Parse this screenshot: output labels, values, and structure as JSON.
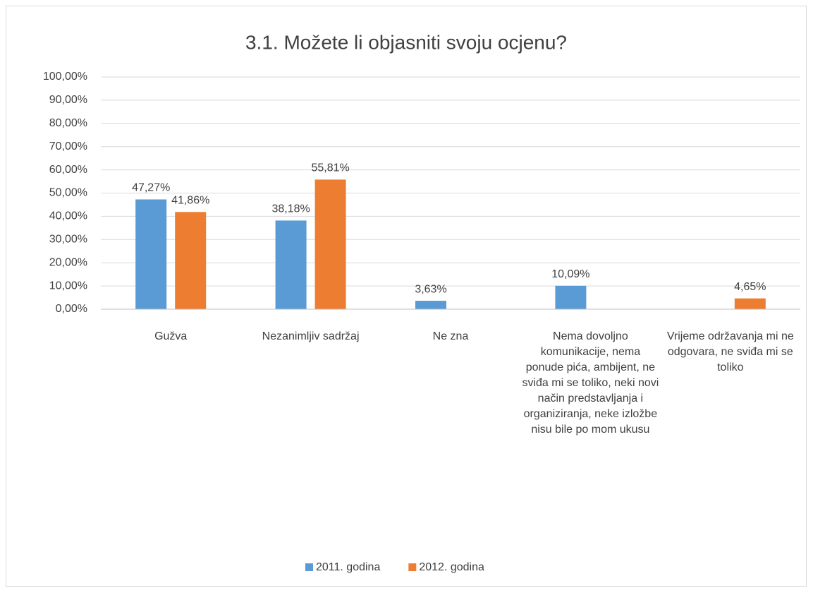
{
  "chart_data": {
    "type": "bar",
    "title": "3.1. Možete li objasniti svoju ocjenu?",
    "categories": [
      "Gužva",
      "Nezanimljiv sadržaj",
      "Ne zna",
      "Nema dovoljno komunikacije, nema ponude pića, ambijent, ne sviđa mi se toliko, neki novi način predstavljanja i organiziranja, neke izložbe nisu bile po mom ukusu",
      "Vrijeme održavanja mi ne odgovara, ne sviđa mi se toliko"
    ],
    "series": [
      {
        "name": "2011. godina",
        "color": "#5b9bd5",
        "values": [
          47.27,
          38.18,
          3.63,
          10.09,
          null
        ],
        "value_labels": [
          "47,27%",
          "38,18%",
          "3,63%",
          "10,09%",
          null
        ]
      },
      {
        "name": "2012. godina",
        "color": "#ed7d31",
        "values": [
          41.86,
          55.81,
          null,
          null,
          4.65
        ],
        "value_labels": [
          "41,86%",
          "55,81%",
          null,
          null,
          "4,65%"
        ]
      }
    ],
    "ylim": [
      0,
      100
    ],
    "yticks": [
      {
        "value": 0,
        "label": "0,00%"
      },
      {
        "value": 10,
        "label": "10,00%"
      },
      {
        "value": 20,
        "label": "20,00%"
      },
      {
        "value": 30,
        "label": "30,00%"
      },
      {
        "value": 40,
        "label": "40,00%"
      },
      {
        "value": 50,
        "label": "50,00%"
      },
      {
        "value": 60,
        "label": "60,00%"
      },
      {
        "value": 70,
        "label": "70,00%"
      },
      {
        "value": 80,
        "label": "80,00%"
      },
      {
        "value": 90,
        "label": "90,00%"
      },
      {
        "value": 100,
        "label": "100,00%"
      }
    ],
    "grid": true,
    "legend": "bottom"
  }
}
